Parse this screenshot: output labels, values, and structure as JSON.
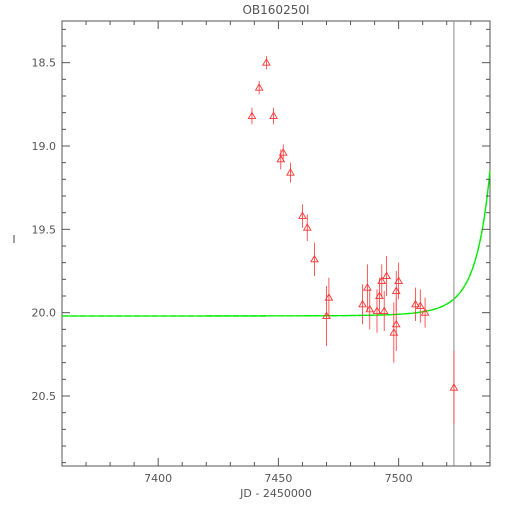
{
  "chart_data": {
    "type": "scatter",
    "title": "OB160250I",
    "xlabel": "JD - 2450000",
    "ylabel": "I",
    "xlim": [
      7360,
      7538
    ],
    "ylim": [
      18.25,
      20.92
    ],
    "y_inverted": true,
    "x_ticks": [
      7400,
      7450,
      7500
    ],
    "y_ticks": [
      18.5,
      19.0,
      19.5,
      20.0,
      20.5
    ],
    "x_tick_labels": [
      "7400",
      "7450",
      "7500"
    ],
    "y_tick_labels": [
      "18.5",
      "19.0",
      "19.5",
      "20.0",
      "20.5"
    ],
    "grid": false,
    "legend": "none",
    "marker_vertical_line_x": 7523,
    "model": {
      "t0": 7544,
      "u0": 0.075,
      "tE": 12.5,
      "base_mag": 20.02
    },
    "points": [
      {
        "x": 7439,
        "y": 18.82,
        "err": 0.05
      },
      {
        "x": 7442,
        "y": 18.65,
        "err": 0.04
      },
      {
        "x": 7445,
        "y": 18.5,
        "err": 0.04
      },
      {
        "x": 7448,
        "y": 18.82,
        "err": 0.05
      },
      {
        "x": 7451,
        "y": 19.08,
        "err": 0.06
      },
      {
        "x": 7452,
        "y": 19.04,
        "err": 0.05
      },
      {
        "x": 7455,
        "y": 19.16,
        "err": 0.06
      },
      {
        "x": 7460,
        "y": 19.42,
        "err": 0.07
      },
      {
        "x": 7462,
        "y": 19.49,
        "err": 0.08
      },
      {
        "x": 7465,
        "y": 19.68,
        "err": 0.1
      },
      {
        "x": 7470,
        "y": 20.02,
        "err": 0.18
      },
      {
        "x": 7471,
        "y": 19.91,
        "err": 0.12
      },
      {
        "x": 7485,
        "y": 19.95,
        "err": 0.12
      },
      {
        "x": 7487,
        "y": 19.85,
        "err": 0.14
      },
      {
        "x": 7488,
        "y": 19.98,
        "err": 0.12
      },
      {
        "x": 7491,
        "y": 19.99,
        "err": 0.13
      },
      {
        "x": 7492,
        "y": 19.9,
        "err": 0.11
      },
      {
        "x": 7493,
        "y": 19.81,
        "err": 0.1
      },
      {
        "x": 7494,
        "y": 19.99,
        "err": 0.12
      },
      {
        "x": 7495,
        "y": 19.78,
        "err": 0.12
      },
      {
        "x": 7498,
        "y": 20.12,
        "err": 0.18
      },
      {
        "x": 7499,
        "y": 20.07,
        "err": 0.16
      },
      {
        "x": 7499,
        "y": 19.87,
        "err": 0.12
      },
      {
        "x": 7500,
        "y": 19.81,
        "err": 0.11
      },
      {
        "x": 7507,
        "y": 19.95,
        "err": 0.1
      },
      {
        "x": 7509,
        "y": 19.96,
        "err": 0.1
      },
      {
        "x": 7511,
        "y": 20.0,
        "err": 0.09
      },
      {
        "x": 7523,
        "y": 20.45,
        "err": 0.22
      }
    ],
    "colors": {
      "axis": "#555555",
      "points": "#ff3333",
      "model": "#00ee00",
      "vline": "#888888"
    }
  }
}
